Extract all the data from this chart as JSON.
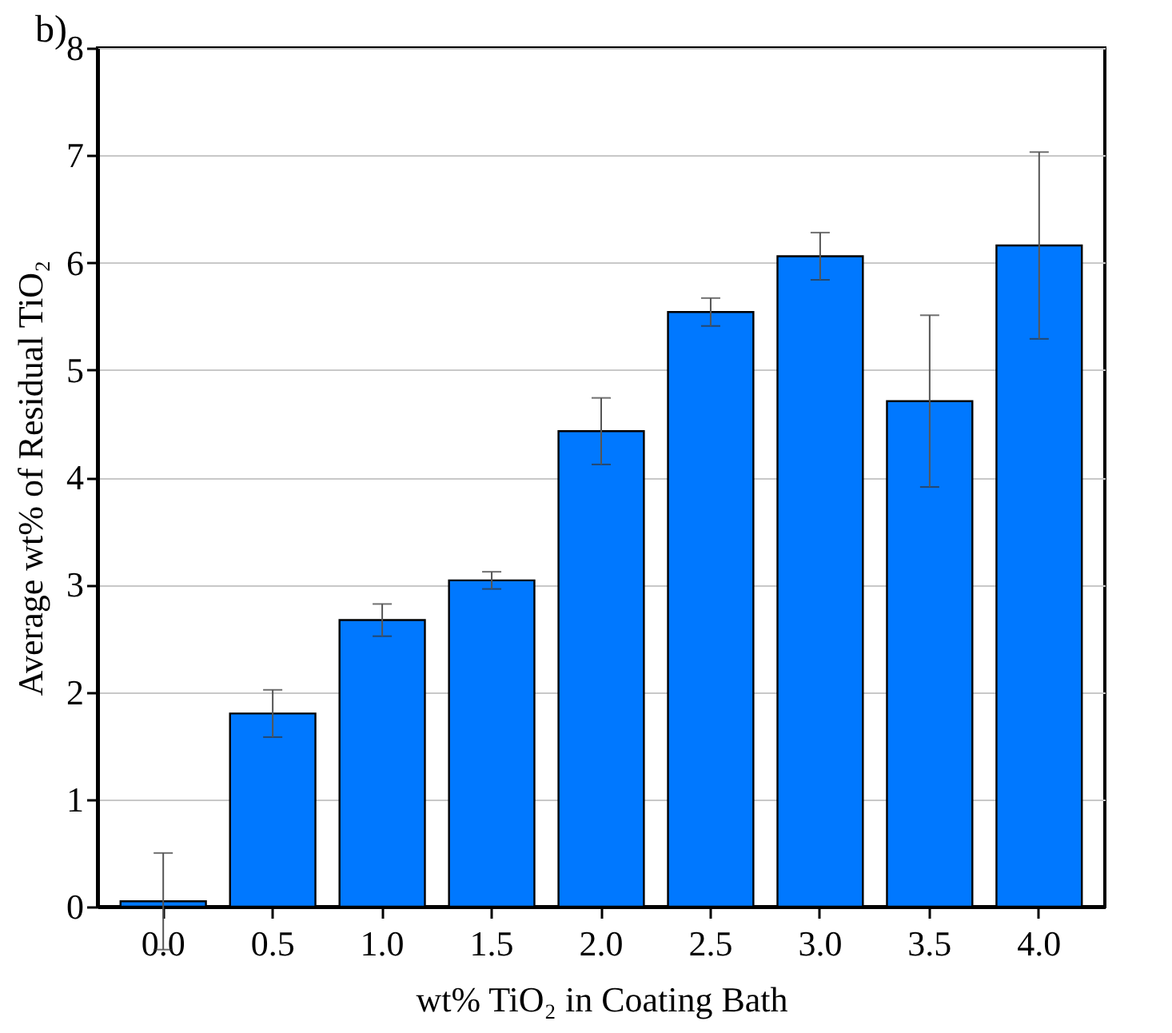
{
  "chart_data": {
    "type": "bar",
    "annotations": [
      "b)"
    ],
    "xlabel": "wt% TiO₂ in Coating Bath",
    "ylabel": "Average wt% of Residual TiO₂",
    "categories": [
      "0.0",
      "0.5",
      "1.0",
      "1.5",
      "2.0",
      "2.5",
      "3.0",
      "3.5",
      "4.0"
    ],
    "values": [
      0.05,
      1.8,
      2.67,
      3.04,
      4.43,
      5.54,
      6.06,
      4.71,
      6.16
    ],
    "errors": [
      0.45,
      0.22,
      0.15,
      0.08,
      0.31,
      0.13,
      0.22,
      0.8,
      0.87
    ],
    "color": "#0078ff",
    "ylim": [
      0,
      8
    ],
    "yticks": [
      0,
      1,
      2,
      3,
      4,
      5,
      6,
      7,
      8
    ],
    "grid": "y"
  }
}
